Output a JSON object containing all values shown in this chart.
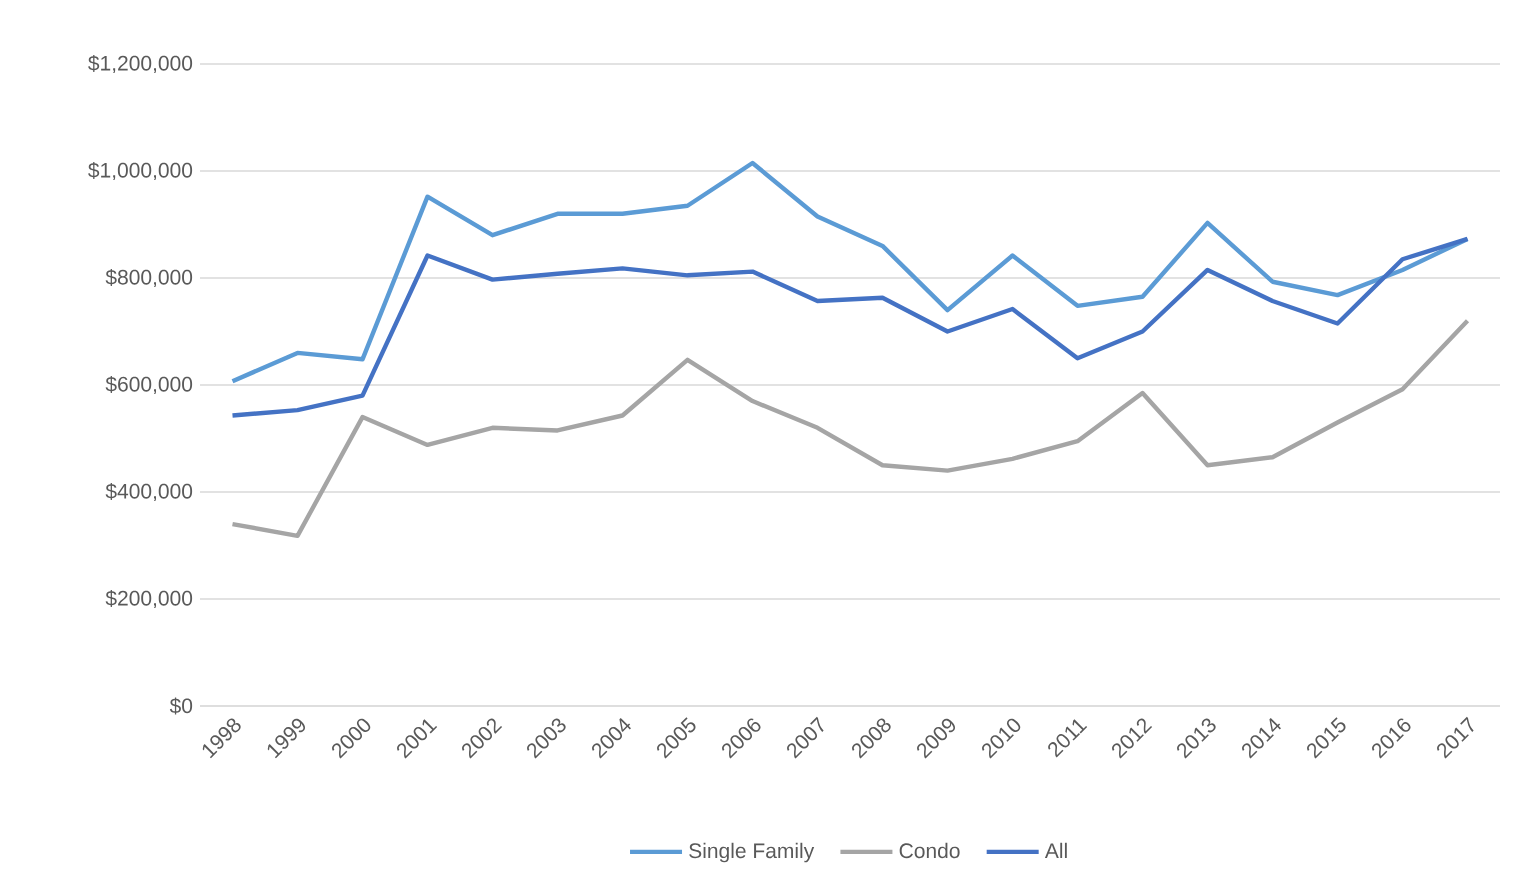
{
  "chart_data": {
    "type": "line",
    "categories": [
      "1998",
      "1999",
      "2000",
      "2001",
      "2002",
      "2003",
      "2004",
      "2005",
      "2006",
      "2007",
      "2008",
      "2009",
      "2010",
      "2011",
      "2012",
      "2013",
      "2014",
      "2015",
      "2016",
      "2017"
    ],
    "series": [
      {
        "name": "Single Family",
        "color": "#5b9bd5",
        "values": [
          607000,
          660000,
          648000,
          952000,
          880000,
          920000,
          920000,
          935000,
          1015000,
          915000,
          860000,
          740000,
          842000,
          748000,
          765000,
          903000,
          793000,
          768000,
          815000,
          873000
        ]
      },
      {
        "name": "Condo",
        "color": "#a5a5a5",
        "values": [
          340000,
          318000,
          540000,
          488000,
          520000,
          515000,
          543000,
          647000,
          570000,
          520000,
          450000,
          440000,
          462000,
          495000,
          585000,
          450000,
          465000,
          530000,
          592000,
          720000
        ]
      },
      {
        "name": "All",
        "color": "#4472c4",
        "values": [
          543000,
          553000,
          580000,
          842000,
          797000,
          808000,
          818000,
          805000,
          812000,
          757000,
          763000,
          700000,
          742000,
          650000,
          700000,
          815000,
          757000,
          715000,
          835000,
          873000
        ]
      }
    ],
    "ylim": [
      0,
      1200000
    ],
    "yticks": [
      {
        "value": 0,
        "label": "$0"
      },
      {
        "value": 200000,
        "label": "$200,000"
      },
      {
        "value": 400000,
        "label": "$400,000"
      },
      {
        "value": 600000,
        "label": "$600,000"
      },
      {
        "value": 800000,
        "label": "$800,000"
      },
      {
        "value": 1000000,
        "label": "$1,000,000"
      },
      {
        "value": 1200000,
        "label": "$1,200,000"
      }
    ],
    "grid": "y",
    "legend": "bottom",
    "marker": "none",
    "line_style": "solid"
  }
}
